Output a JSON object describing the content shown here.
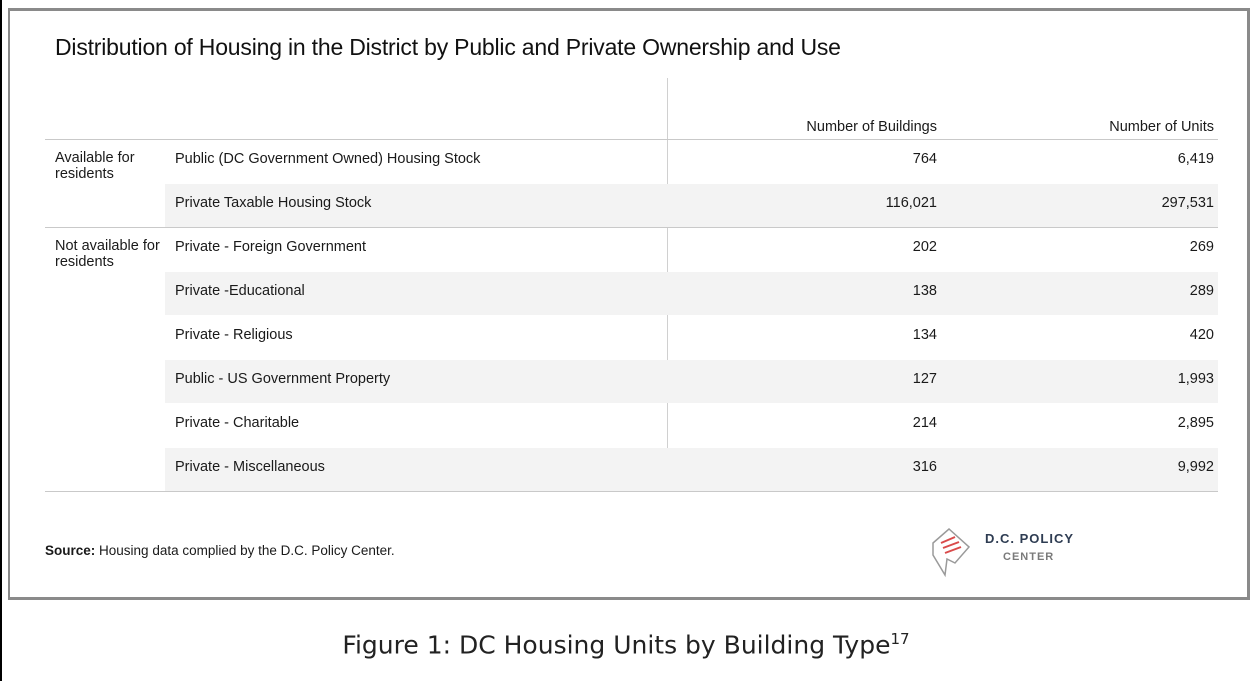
{
  "title": "Distribution of Housing in the District by Public and Private Ownership and Use",
  "table": {
    "columns": [
      "Number of Buildings",
      "Number of Units"
    ],
    "groups": [
      {
        "label": "Available for residents",
        "rows": [
          {
            "name": "Public (DC Government Owned) Housing Stock",
            "buildings": "764",
            "units": "6,419"
          },
          {
            "name": "Private Taxable Housing Stock",
            "buildings": "116,021",
            "units": "297,531"
          }
        ]
      },
      {
        "label": "Not available for residents",
        "rows": [
          {
            "name": "Private - Foreign Government",
            "buildings": "202",
            "units": "269"
          },
          {
            "name": "Private -Educational",
            "buildings": "138",
            "units": "289"
          },
          {
            "name": "Private - Religious",
            "buildings": "134",
            "units": "420"
          },
          {
            "name": "Public - US Government Property",
            "buildings": "127",
            "units": "1,993"
          },
          {
            "name": "Private - Charitable",
            "buildings": "214",
            "units": "2,895"
          },
          {
            "name": "Private - Miscellaneous",
            "buildings": "316",
            "units": "9,992"
          }
        ]
      }
    ]
  },
  "source": {
    "label": "Source:",
    "text": "Housing data complied by the D.C. Policy Center."
  },
  "logo": {
    "line1": "D.C. POLICY",
    "line2": "CENTER"
  },
  "caption": {
    "text": "Figure 1: DC Housing Units by Building Type",
    "note": "17"
  }
}
